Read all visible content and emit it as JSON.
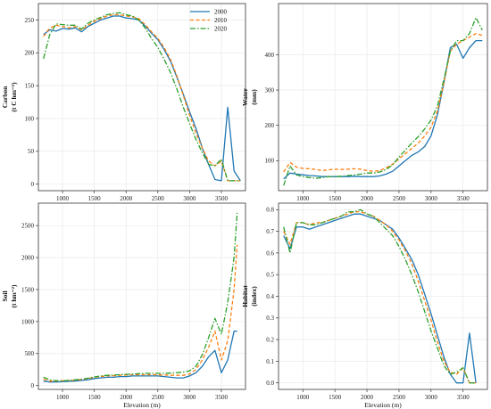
{
  "figure": {
    "colors": {
      "2000": "#1f77b4",
      "2010": "#ff7f0e",
      "2020": "#2ca02c"
    },
    "legend_position": "top-right of first panel"
  },
  "chart_data": [
    {
      "type": "line",
      "panel": "carbon",
      "ylabel_lines": [
        "Carbon",
        "(t C hm⁻²)"
      ],
      "xlabel": "",
      "xticks": [
        1000,
        1500,
        2000,
        2500,
        3000,
        3500
      ],
      "yticks": [
        0,
        50,
        100,
        150,
        200,
        250
      ],
      "xlim": [
        620,
        3880
      ],
      "ylim": [
        -10,
        275
      ],
      "grid": true,
      "legend": [
        "2000",
        "2010",
        "2020"
      ],
      "series": [
        {
          "name": "2000",
          "style": "solid",
          "x": [
            700,
            800,
            900,
            1000,
            1100,
            1200,
            1300,
            1400,
            1500,
            1600,
            1700,
            1800,
            1900,
            2000,
            2100,
            2200,
            2300,
            2400,
            2500,
            2600,
            2700,
            2800,
            2900,
            3000,
            3100,
            3200,
            3300,
            3400,
            3500,
            3600,
            3700,
            3800
          ],
          "y": [
            228,
            235,
            233,
            237,
            236,
            238,
            232,
            240,
            245,
            250,
            253,
            256,
            256,
            253,
            252,
            250,
            241,
            230,
            220,
            205,
            187,
            163,
            137,
            110,
            85,
            55,
            30,
            7,
            5,
            117,
            20,
            5
          ]
        },
        {
          "name": "2010",
          "style": "dashed",
          "x": [
            700,
            800,
            900,
            1000,
            1100,
            1200,
            1300,
            1400,
            1500,
            1600,
            1700,
            1800,
            1900,
            2000,
            2100,
            2200,
            2300,
            2400,
            2500,
            2600,
            2700,
            2800,
            2900,
            3000,
            3100,
            3200,
            3300,
            3400,
            3500,
            3600,
            3700,
            3800
          ],
          "y": [
            225,
            238,
            242,
            240,
            238,
            240,
            235,
            242,
            248,
            252,
            256,
            258,
            258,
            256,
            255,
            252,
            243,
            232,
            222,
            208,
            190,
            165,
            135,
            105,
            78,
            55,
            35,
            28,
            35,
            5,
            5,
            5
          ]
        },
        {
          "name": "2020",
          "style": "dashdot",
          "x": [
            700,
            800,
            900,
            1000,
            1100,
            1200,
            1300,
            1400,
            1500,
            1600,
            1700,
            1800,
            1900,
            2000,
            2100,
            2200,
            2300,
            2400,
            2500,
            2600,
            2700,
            2800,
            2900,
            3000,
            3100,
            3200,
            3300,
            3400,
            3500,
            3600,
            3700,
            3800
          ],
          "y": [
            191,
            228,
            244,
            243,
            242,
            242,
            236,
            245,
            250,
            254,
            258,
            260,
            261,
            258,
            256,
            250,
            238,
            222,
            208,
            190,
            170,
            145,
            117,
            92,
            68,
            48,
            30,
            28,
            38,
            5,
            5,
            5
          ]
        }
      ]
    },
    {
      "type": "line",
      "panel": "water",
      "ylabel_lines": [
        "Water",
        "(mm)"
      ],
      "xlabel": "",
      "xticks": [
        1000,
        1500,
        2000,
        2500,
        3000,
        3500
      ],
      "yticks": [
        100,
        200,
        300,
        400
      ],
      "xlim": [
        620,
        3880
      ],
      "ylim": [
        15,
        545
      ],
      "grid": true,
      "series": [
        {
          "name": "2000",
          "style": "solid",
          "x": [
            700,
            800,
            900,
            1000,
            1100,
            1200,
            1300,
            1400,
            1500,
            1600,
            1700,
            1800,
            1900,
            2000,
            2100,
            2200,
            2300,
            2400,
            2500,
            2600,
            2700,
            2800,
            2900,
            3000,
            3100,
            3200,
            3300,
            3400,
            3500,
            3600,
            3700,
            3800
          ],
          "y": [
            48,
            65,
            62,
            60,
            58,
            57,
            55,
            55,
            55,
            55,
            55,
            56,
            55,
            55,
            55,
            57,
            62,
            70,
            85,
            100,
            115,
            125,
            140,
            170,
            230,
            320,
            420,
            430,
            390,
            420,
            440,
            440
          ]
        },
        {
          "name": "2010",
          "style": "dashed",
          "x": [
            700,
            800,
            900,
            1000,
            1100,
            1200,
            1300,
            1400,
            1500,
            1600,
            1700,
            1800,
            1900,
            2000,
            2100,
            2200,
            2300,
            2400,
            2500,
            2600,
            2700,
            2800,
            2900,
            3000,
            3100,
            3200,
            3300,
            3400,
            3500,
            3600,
            3700,
            3800
          ],
          "y": [
            68,
            95,
            82,
            78,
            77,
            75,
            72,
            74,
            76,
            75,
            76,
            77,
            76,
            72,
            70,
            72,
            80,
            90,
            105,
            120,
            135,
            150,
            170,
            195,
            240,
            320,
            410,
            430,
            440,
            450,
            460,
            455
          ]
        },
        {
          "name": "2020",
          "style": "dashdot",
          "x": [
            700,
            800,
            900,
            1000,
            1100,
            1200,
            1300,
            1400,
            1500,
            1600,
            1700,
            1800,
            1900,
            2000,
            2100,
            2200,
            2300,
            2400,
            2500,
            2600,
            2700,
            2800,
            2900,
            3000,
            3100,
            3200,
            3300,
            3400,
            3500,
            3600,
            3700,
            3800
          ],
          "y": [
            30,
            85,
            60,
            55,
            52,
            50,
            52,
            55,
            55,
            56,
            58,
            60,
            62,
            65,
            65,
            68,
            75,
            88,
            110,
            130,
            150,
            168,
            190,
            215,
            255,
            330,
            410,
            440,
            440,
            460,
            505,
            470
          ]
        }
      ]
    },
    {
      "type": "line",
      "panel": "soil",
      "ylabel_lines": [
        "Soil",
        "(t hm⁻²)"
      ],
      "xlabel": "Elevation (m)",
      "xticks": [
        1000,
        1500,
        2000,
        2500,
        3000,
        3500
      ],
      "yticks": [
        0,
        500,
        1000,
        1500,
        2000,
        2500
      ],
      "xlim": [
        620,
        3880
      ],
      "ylim": [
        -60,
        2850
      ],
      "grid": true,
      "series": [
        {
          "name": "2000",
          "style": "solid",
          "x": [
            700,
            800,
            900,
            1000,
            1100,
            1200,
            1300,
            1400,
            1500,
            1600,
            1700,
            1800,
            1900,
            2000,
            2100,
            2200,
            2300,
            2400,
            2500,
            2600,
            2700,
            2800,
            2900,
            3000,
            3100,
            3200,
            3300,
            3400,
            3500,
            3600,
            3700,
            3750
          ],
          "y": [
            70,
            55,
            55,
            60,
            65,
            70,
            80,
            90,
            110,
            120,
            130,
            130,
            140,
            140,
            150,
            150,
            150,
            150,
            150,
            140,
            130,
            120,
            120,
            150,
            200,
            300,
            450,
            550,
            200,
            400,
            850,
            850
          ]
        },
        {
          "name": "2010",
          "style": "dashed",
          "x": [
            700,
            800,
            900,
            1000,
            1100,
            1200,
            1300,
            1400,
            1500,
            1600,
            1700,
            1800,
            1900,
            2000,
            2100,
            2200,
            2300,
            2400,
            2500,
            2600,
            2700,
            2800,
            2900,
            3000,
            3100,
            3200,
            3300,
            3400,
            3500,
            3600,
            3700,
            3750
          ],
          "y": [
            100,
            70,
            70,
            75,
            80,
            85,
            95,
            110,
            130,
            140,
            150,
            155,
            160,
            165,
            170,
            170,
            170,
            170,
            170,
            165,
            160,
            160,
            160,
            180,
            250,
            400,
            600,
            850,
            400,
            700,
            1500,
            2200
          ]
        },
        {
          "name": "2020",
          "style": "dashdot",
          "x": [
            700,
            800,
            900,
            1000,
            1100,
            1200,
            1300,
            1400,
            1500,
            1600,
            1700,
            1800,
            1900,
            2000,
            2100,
            2200,
            2300,
            2400,
            2500,
            2600,
            2700,
            2800,
            2900,
            3000,
            3100,
            3200,
            3300,
            3400,
            3500,
            3600,
            3700,
            3750
          ],
          "y": [
            130,
            90,
            75,
            75,
            80,
            90,
            100,
            115,
            135,
            150,
            160,
            165,
            170,
            175,
            180,
            185,
            190,
            190,
            190,
            190,
            195,
            200,
            210,
            230,
            300,
            480,
            750,
            1050,
            800,
            1300,
            2000,
            2700
          ]
        }
      ]
    },
    {
      "type": "line",
      "panel": "habitat",
      "ylabel_lines": [
        "Habitat",
        "(index)"
      ],
      "xlabel": "Elevation (m)",
      "xticks": [
        1000,
        1500,
        2000,
        2500,
        3000,
        3500
      ],
      "yticks": [
        "0.0",
        "0.1",
        "0.2",
        "0.3",
        "0.4",
        "0.5",
        "0.6",
        "0.7",
        "0.8"
      ],
      "xlim": [
        620,
        3880
      ],
      "ylim": [
        -0.03,
        0.83
      ],
      "grid": true,
      "series": [
        {
          "name": "2000",
          "style": "solid",
          "x": [
            700,
            800,
            900,
            1000,
            1100,
            1200,
            1300,
            1400,
            1500,
            1600,
            1700,
            1800,
            1900,
            2000,
            2100,
            2200,
            2300,
            2400,
            2500,
            2600,
            2700,
            2800,
            2900,
            3000,
            3100,
            3200,
            3300,
            3400,
            3500,
            3600,
            3700
          ],
          "y": [
            0.68,
            0.62,
            0.72,
            0.72,
            0.71,
            0.72,
            0.73,
            0.74,
            0.75,
            0.76,
            0.77,
            0.78,
            0.78,
            0.77,
            0.76,
            0.75,
            0.73,
            0.71,
            0.67,
            0.62,
            0.57,
            0.5,
            0.41,
            0.32,
            0.22,
            0.12,
            0.04,
            0.0,
            0.0,
            0.23,
            0.0
          ]
        },
        {
          "name": "2010",
          "style": "dashed",
          "x": [
            700,
            800,
            900,
            1000,
            1100,
            1200,
            1300,
            1400,
            1500,
            1600,
            1700,
            1800,
            1900,
            2000,
            2100,
            2200,
            2300,
            2400,
            2500,
            2600,
            2700,
            2800,
            2900,
            3000,
            3100,
            3200,
            3300,
            3400,
            3500,
            3600,
            3700
          ],
          "y": [
            0.7,
            0.64,
            0.74,
            0.74,
            0.73,
            0.74,
            0.74,
            0.75,
            0.76,
            0.77,
            0.78,
            0.79,
            0.79,
            0.78,
            0.77,
            0.75,
            0.73,
            0.7,
            0.66,
            0.61,
            0.55,
            0.47,
            0.38,
            0.29,
            0.19,
            0.1,
            0.05,
            0.04,
            0.07,
            0.0,
            0.0
          ]
        },
        {
          "name": "2020",
          "style": "dashdot",
          "x": [
            700,
            800,
            900,
            1000,
            1100,
            1200,
            1300,
            1400,
            1500,
            1600,
            1700,
            1800,
            1900,
            2000,
            2100,
            2200,
            2300,
            2400,
            2500,
            2600,
            2700,
            2800,
            2900,
            3000,
            3100,
            3200,
            3300,
            3400,
            3500,
            3600,
            3700
          ],
          "y": [
            0.72,
            0.6,
            0.74,
            0.74,
            0.73,
            0.73,
            0.74,
            0.75,
            0.76,
            0.77,
            0.79,
            0.79,
            0.8,
            0.78,
            0.77,
            0.74,
            0.71,
            0.68,
            0.63,
            0.57,
            0.5,
            0.42,
            0.33,
            0.24,
            0.16,
            0.08,
            0.04,
            0.05,
            0.07,
            0.0,
            0.0
          ]
        }
      ]
    }
  ]
}
